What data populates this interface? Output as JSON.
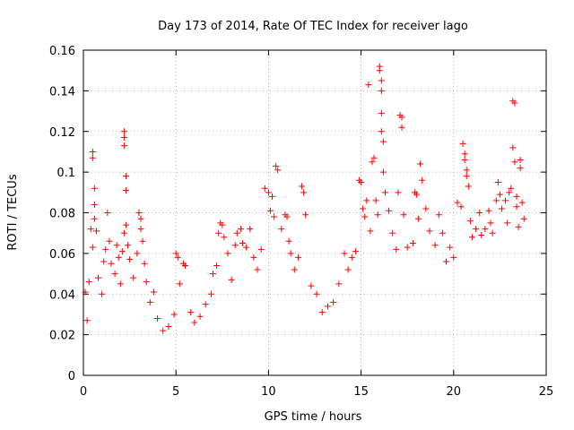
{
  "chart_data": {
    "type": "scatter",
    "title": "Day 173 of 2014, Rate Of TEC Index for receiver lago",
    "xlabel": "GPS time / hours",
    "ylabel": "ROTI / TECUs",
    "xlim": [
      0,
      25
    ],
    "ylim": [
      0,
      0.16
    ],
    "xticks": [
      0,
      5,
      10,
      15,
      20,
      25
    ],
    "xtick_labels": [
      "0",
      "5",
      "10",
      "15",
      "20",
      "25"
    ],
    "yticks": [
      0,
      0.02,
      0.04,
      0.06,
      0.08,
      0.1,
      0.12,
      0.14,
      0.16
    ],
    "ytick_labels": [
      "0",
      "0.02",
      "0.04",
      "0.06",
      "0.08",
      "0.1",
      "0.12",
      "0.14",
      "0.16"
    ],
    "grid": true,
    "marker": "plus",
    "series_color": "#ff0000",
    "x_range_observed": [
      0,
      23.8
    ],
    "series": [
      {
        "name": "ROTI",
        "points": [
          [
            0.1,
            0.041
          ],
          [
            0.2,
            0.027
          ],
          [
            0.3,
            0.046
          ],
          [
            0.4,
            0.072
          ],
          [
            0.5,
            0.063
          ],
          [
            0.5,
            0.11
          ],
          [
            0.5,
            0.107
          ],
          [
            0.6,
            0.092
          ],
          [
            0.6,
            0.084
          ],
          [
            0.6,
            0.077
          ],
          [
            0.7,
            0.071
          ],
          [
            0.8,
            0.048
          ],
          [
            1.0,
            0.04
          ],
          [
            1.1,
            0.056
          ],
          [
            1.2,
            0.062
          ],
          [
            1.3,
            0.08
          ],
          [
            1.4,
            0.066
          ],
          [
            1.5,
            0.055
          ],
          [
            1.7,
            0.05
          ],
          [
            1.8,
            0.064
          ],
          [
            1.9,
            0.058
          ],
          [
            2.0,
            0.045
          ],
          [
            2.1,
            0.061
          ],
          [
            2.2,
            0.07
          ],
          [
            2.2,
            0.12
          ],
          [
            2.2,
            0.117
          ],
          [
            2.2,
            0.113
          ],
          [
            2.3,
            0.098
          ],
          [
            2.3,
            0.091
          ],
          [
            2.3,
            0.074
          ],
          [
            2.4,
            0.064
          ],
          [
            2.5,
            0.057
          ],
          [
            2.7,
            0.048
          ],
          [
            2.9,
            0.06
          ],
          [
            3.0,
            0.08
          ],
          [
            3.1,
            0.077
          ],
          [
            3.1,
            0.072
          ],
          [
            3.2,
            0.066
          ],
          [
            3.3,
            0.055
          ],
          [
            3.4,
            0.046
          ],
          [
            3.6,
            0.036
          ],
          [
            3.8,
            0.041
          ],
          [
            4.0,
            0.028
          ],
          [
            4.3,
            0.022
          ],
          [
            4.6,
            0.024
          ],
          [
            4.9,
            0.03
          ],
          [
            5.0,
            0.06
          ],
          [
            5.1,
            0.058
          ],
          [
            5.2,
            0.045
          ],
          [
            5.4,
            0.055
          ],
          [
            5.5,
            0.054
          ],
          [
            5.8,
            0.031
          ],
          [
            6.0,
            0.026
          ],
          [
            6.3,
            0.029
          ],
          [
            6.6,
            0.035
          ],
          [
            6.9,
            0.04
          ],
          [
            7.0,
            0.05
          ],
          [
            7.2,
            0.054
          ],
          [
            7.3,
            0.07
          ],
          [
            7.4,
            0.075
          ],
          [
            7.5,
            0.074
          ],
          [
            7.6,
            0.068
          ],
          [
            7.8,
            0.06
          ],
          [
            8.0,
            0.047
          ],
          [
            8.2,
            0.064
          ],
          [
            8.3,
            0.07
          ],
          [
            8.5,
            0.072
          ],
          [
            8.6,
            0.065
          ],
          [
            8.8,
            0.063
          ],
          [
            9.0,
            0.072
          ],
          [
            9.2,
            0.058
          ],
          [
            9.4,
            0.052
          ],
          [
            9.6,
            0.062
          ],
          [
            9.8,
            0.092
          ],
          [
            10.0,
            0.09
          ],
          [
            10.1,
            0.081
          ],
          [
            10.2,
            0.088
          ],
          [
            10.3,
            0.078
          ],
          [
            10.4,
            0.103
          ],
          [
            10.5,
            0.101
          ],
          [
            10.7,
            0.072
          ],
          [
            10.9,
            0.079
          ],
          [
            11.0,
            0.078
          ],
          [
            11.1,
            0.066
          ],
          [
            11.2,
            0.06
          ],
          [
            11.4,
            0.052
          ],
          [
            11.6,
            0.058
          ],
          [
            11.8,
            0.093
          ],
          [
            11.9,
            0.09
          ],
          [
            12.0,
            0.079
          ],
          [
            12.3,
            0.044
          ],
          [
            12.6,
            0.04
          ],
          [
            12.9,
            0.031
          ],
          [
            13.2,
            0.034
          ],
          [
            13.5,
            0.036
          ],
          [
            13.8,
            0.045
          ],
          [
            14.1,
            0.06
          ],
          [
            14.3,
            0.052
          ],
          [
            14.5,
            0.058
          ],
          [
            14.7,
            0.061
          ],
          [
            14.9,
            0.096
          ],
          [
            15.0,
            0.095
          ],
          [
            15.1,
            0.082
          ],
          [
            15.2,
            0.078
          ],
          [
            15.3,
            0.086
          ],
          [
            15.4,
            0.143
          ],
          [
            15.5,
            0.071
          ],
          [
            15.6,
            0.105
          ],
          [
            15.7,
            0.107
          ],
          [
            15.8,
            0.086
          ],
          [
            15.9,
            0.079
          ],
          [
            16.0,
            0.152
          ],
          [
            16.0,
            0.15
          ],
          [
            16.1,
            0.145
          ],
          [
            16.1,
            0.14
          ],
          [
            16.1,
            0.129
          ],
          [
            16.1,
            0.12
          ],
          [
            16.2,
            0.115
          ],
          [
            16.2,
            0.1
          ],
          [
            16.3,
            0.09
          ],
          [
            16.5,
            0.081
          ],
          [
            16.7,
            0.07
          ],
          [
            16.9,
            0.062
          ],
          [
            17.0,
            0.09
          ],
          [
            17.1,
            0.128
          ],
          [
            17.2,
            0.127
          ],
          [
            17.2,
            0.122
          ],
          [
            17.3,
            0.079
          ],
          [
            17.5,
            0.063
          ],
          [
            17.8,
            0.065
          ],
          [
            17.9,
            0.09
          ],
          [
            18.0,
            0.089
          ],
          [
            18.1,
            0.077
          ],
          [
            18.2,
            0.104
          ],
          [
            18.3,
            0.096
          ],
          [
            18.5,
            0.082
          ],
          [
            18.7,
            0.071
          ],
          [
            19.0,
            0.064
          ],
          [
            19.2,
            0.079
          ],
          [
            19.4,
            0.07
          ],
          [
            19.6,
            0.056
          ],
          [
            19.8,
            0.063
          ],
          [
            20.0,
            0.058
          ],
          [
            20.2,
            0.085
          ],
          [
            20.4,
            0.083
          ],
          [
            20.5,
            0.114
          ],
          [
            20.6,
            0.109
          ],
          [
            20.6,
            0.106
          ],
          [
            20.7,
            0.101
          ],
          [
            20.7,
            0.098
          ],
          [
            20.8,
            0.093
          ],
          [
            20.9,
            0.076
          ],
          [
            21.0,
            0.068
          ],
          [
            21.2,
            0.072
          ],
          [
            21.4,
            0.08
          ],
          [
            21.5,
            0.069
          ],
          [
            21.7,
            0.072
          ],
          [
            21.9,
            0.081
          ],
          [
            22.0,
            0.075
          ],
          [
            22.1,
            0.07
          ],
          [
            22.3,
            0.086
          ],
          [
            22.4,
            0.095
          ],
          [
            22.5,
            0.089
          ],
          [
            22.6,
            0.082
          ],
          [
            22.8,
            0.086
          ],
          [
            22.9,
            0.075
          ],
          [
            23.0,
            0.09
          ],
          [
            23.1,
            0.092
          ],
          [
            23.2,
            0.112
          ],
          [
            23.2,
            0.135
          ],
          [
            23.3,
            0.134
          ],
          [
            23.3,
            0.105
          ],
          [
            23.4,
            0.088
          ],
          [
            23.4,
            0.083
          ],
          [
            23.5,
            0.073
          ],
          [
            23.6,
            0.102
          ],
          [
            23.6,
            0.106
          ],
          [
            23.7,
            0.085
          ],
          [
            23.8,
            0.077
          ]
        ]
      }
    ]
  }
}
